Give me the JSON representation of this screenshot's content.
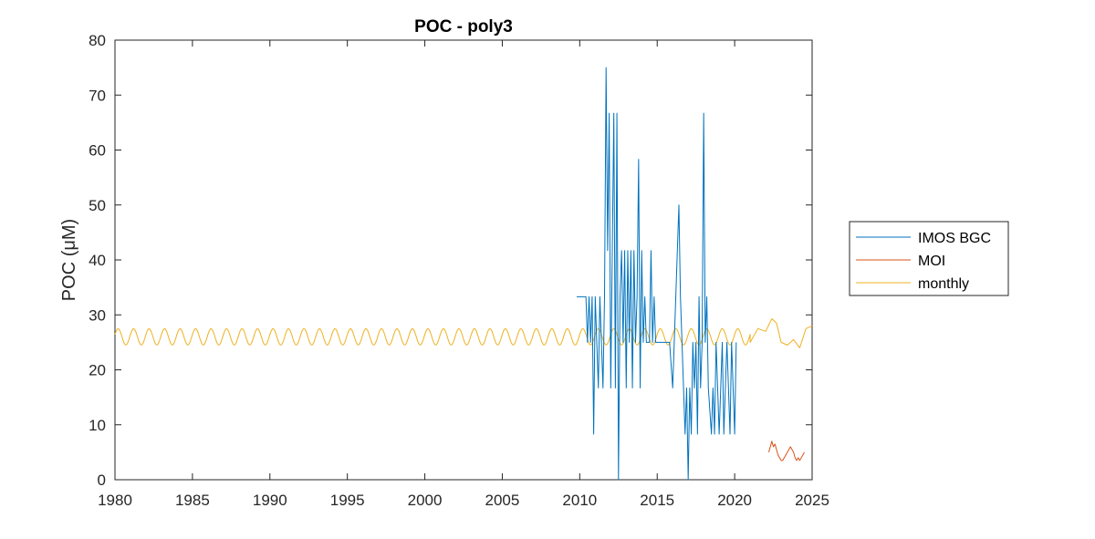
{
  "chart_data": {
    "type": "line",
    "title": "POC - poly3",
    "xlabel": "",
    "ylabel": "POC (μM)",
    "xlim": [
      1980,
      2025
    ],
    "ylim": [
      0,
      80
    ],
    "xticks": [
      "1980",
      "1985",
      "1990",
      "1995",
      "2000",
      "2005",
      "2010",
      "2015",
      "2020",
      "2025"
    ],
    "yticks": [
      "0",
      "10",
      "20",
      "30",
      "40",
      "50",
      "60",
      "70",
      "80"
    ],
    "grid": false,
    "legend_position": "outside-right",
    "series": [
      {
        "name": "IMOS BGC",
        "color": "#0072BD",
        "x": [
          2009.8,
          2010.2,
          2010.4,
          2010.5,
          2010.6,
          2010.7,
          2010.8,
          2010.9,
          2011.0,
          2011.1,
          2011.2,
          2011.3,
          2011.4,
          2011.5,
          2011.6,
          2011.7,
          2011.8,
          2011.9,
          2012.0,
          2012.1,
          2012.2,
          2012.3,
          2012.4,
          2012.5,
          2012.6,
          2012.7,
          2012.8,
          2012.9,
          2013.0,
          2013.1,
          2013.2,
          2013.3,
          2013.4,
          2013.5,
          2013.6,
          2013.7,
          2013.8,
          2013.9,
          2014.0,
          2014.1,
          2014.2,
          2014.3,
          2014.4,
          2014.5,
          2014.6,
          2014.7,
          2014.8,
          2014.9,
          2015.0,
          2015.3,
          2015.6,
          2015.8,
          2016.0,
          2016.4,
          2016.5,
          2016.6,
          2016.8,
          2016.9,
          2017.0,
          2017.1,
          2017.2,
          2017.3,
          2017.4,
          2017.5,
          2017.6,
          2017.7,
          2017.8,
          2017.9,
          2018.0,
          2018.1,
          2018.2,
          2018.3,
          2018.5,
          2018.6,
          2018.7,
          2018.8,
          2018.9,
          2019.0,
          2019.1,
          2019.2,
          2019.3,
          2019.4,
          2019.5,
          2019.6,
          2019.7,
          2019.8,
          2019.9,
          2020.0,
          2020.1
        ],
        "values": [
          33.3,
          33.3,
          33.3,
          25,
          33.3,
          25,
          33.3,
          8.3,
          33.3,
          25,
          16.7,
          33.3,
          25,
          16.7,
          33.3,
          75,
          41.7,
          66.7,
          16.7,
          41.7,
          66.7,
          16.7,
          66.7,
          0,
          33.3,
          41.7,
          25,
          41.7,
          16.7,
          41.7,
          25,
          41.7,
          16.7,
          41.7,
          25,
          33.3,
          58.3,
          16.7,
          41.7,
          25,
          33.3,
          25,
          25,
          25,
          41.7,
          25,
          33.3,
          25,
          25,
          25,
          25,
          25,
          16.7,
          50,
          33.3,
          25,
          8.3,
          16.7,
          0,
          16.7,
          8.3,
          25,
          16.7,
          25,
          8.3,
          33.3,
          16.7,
          25,
          66.7,
          25,
          33.3,
          16.7,
          8.3,
          16.7,
          8.3,
          25,
          16.7,
          8.3,
          16.7,
          25,
          8.3,
          16.7,
          25,
          16.7,
          8.3,
          25,
          16.7,
          8.3,
          25
        ]
      },
      {
        "name": "MOI",
        "color": "#D95319",
        "x": [
          2022.2,
          2022.3,
          2022.4,
          2022.5,
          2022.6,
          2022.7,
          2022.8,
          2022.9,
          2023.0,
          2023.1,
          2023.2,
          2023.3,
          2023.4,
          2023.5,
          2023.6,
          2023.7,
          2023.8,
          2023.9,
          2024.0,
          2024.1,
          2024.2,
          2024.3,
          2024.4,
          2024.5
        ],
        "values": [
          5,
          6,
          7,
          6,
          6.5,
          5.5,
          4.5,
          4,
          3.5,
          3.5,
          4,
          4.5,
          5,
          5.5,
          6,
          5.5,
          5,
          4,
          3.5,
          4,
          3.5,
          4,
          4.5,
          5
        ]
      },
      {
        "name": "monthly",
        "color": "#EDB120",
        "x_start": 1980,
        "x_end": 2025,
        "base_level": 26,
        "seasonal_amplitude": 1.5,
        "period_years": 1,
        "anomaly_segment": {
          "x": [
            2021.0,
            2021.5,
            2022.0,
            2022.4,
            2022.7,
            2023.0,
            2023.4,
            2023.8,
            2024.2,
            2024.6,
            2025.0
          ],
          "values": [
            25,
            27.5,
            27,
            29.3,
            28.5,
            25,
            24.5,
            25.5,
            24,
            27.5,
            28
          ]
        }
      }
    ]
  }
}
